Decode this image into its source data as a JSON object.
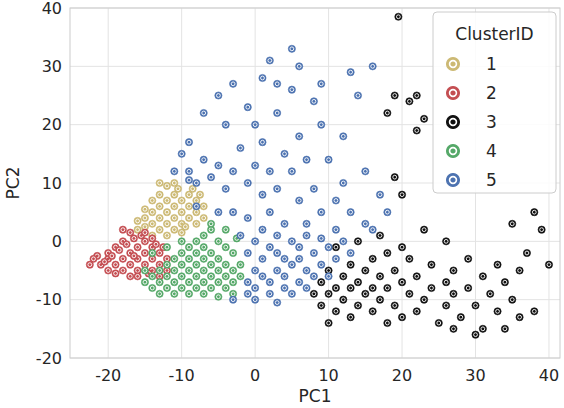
{
  "chart_data": {
    "type": "scatter",
    "x_label": "PC1",
    "y_label": "PC2",
    "xlim": [
      -25.2,
      41.5
    ],
    "ylim": [
      -20,
      40
    ],
    "xticks": [
      -20,
      -10,
      0,
      10,
      20,
      30,
      40
    ],
    "yticks": [
      -20,
      -10,
      0,
      10,
      20,
      30,
      40
    ],
    "grid": true,
    "legend": "upper right",
    "legend_title": "ClusterID",
    "marker": "circle",
    "series": [
      {
        "name": "1",
        "color": "#ccb974",
        "x": [
          -16,
          -15,
          -15,
          -14,
          -14,
          -13,
          -13,
          -13,
          -12,
          -12,
          -12,
          -11,
          -11,
          -11,
          -10,
          -10,
          -10,
          -9,
          -9,
          -9,
          -8,
          -8,
          -8,
          -7,
          -7,
          -14,
          -13,
          -12,
          -11,
          -10,
          -16,
          -14,
          -12,
          -11,
          -13,
          -9.5,
          -8.5,
          -7.5,
          -15,
          -10.5
        ],
        "values": [
          2,
          2.5,
          4,
          3,
          5,
          4,
          6,
          8,
          3,
          5,
          7,
          4,
          6,
          8,
          5,
          3,
          7,
          4,
          6,
          8,
          5,
          7,
          3,
          6,
          4,
          1,
          2,
          1,
          2,
          1.5,
          3.5,
          7,
          9.5,
          10,
          10,
          2.5,
          9,
          8,
          5.5,
          9
        ]
      },
      {
        "name": "2",
        "color": "#c44e52",
        "x": [
          -21,
          -20,
          -20,
          -19,
          -19,
          -18,
          -18,
          -18,
          -17,
          -17,
          -17,
          -16,
          -16,
          -16,
          -15,
          -15,
          -15,
          -14,
          -14,
          -14,
          -13,
          -13,
          -19.5,
          -18.5,
          -17.5,
          -16.5,
          -15.5,
          -20.5,
          -21.5,
          -22,
          -19,
          -16,
          -14.5,
          -13,
          -12,
          -12,
          -12.5,
          -17,
          -15,
          -18,
          -20,
          -22.5,
          -14,
          -13.5,
          -16.5
        ],
        "values": [
          -4,
          -3,
          -2,
          -4,
          -1,
          -3,
          -5,
          0,
          -2,
          -4,
          -6,
          -1,
          -3,
          -5,
          -2,
          -4,
          0,
          -1,
          -3,
          -5,
          -2,
          -4,
          -2.5,
          -1.5,
          -0.5,
          0.5,
          1,
          -3.5,
          -2.5,
          -3,
          -5.5,
          -6,
          -5.5,
          -6,
          -5,
          -3,
          -1,
          1.5,
          1.5,
          2,
          -5,
          -4,
          0.5,
          -0.5,
          -2.5
        ]
      },
      {
        "name": "3",
        "color": "#111111",
        "x": [
          8,
          9,
          9,
          10,
          10,
          11,
          11,
          12,
          12,
          13,
          13,
          13,
          14,
          14,
          15,
          15,
          16,
          16,
          16,
          17,
          17,
          18,
          18,
          18,
          19,
          19,
          20,
          20,
          21,
          21,
          22,
          22,
          23,
          24,
          24,
          25,
          26,
          26,
          27,
          27,
          28,
          29,
          29,
          30,
          31,
          31,
          32,
          33,
          33,
          34,
          35,
          36,
          37,
          38,
          39,
          36,
          30,
          27,
          11,
          14,
          17,
          20,
          23,
          26,
          19.5,
          18,
          19,
          21,
          22,
          19,
          20,
          22,
          23,
          35,
          40,
          38,
          34,
          10
        ],
        "values": [
          -9,
          -7,
          -11,
          -5,
          -9,
          -8,
          -12,
          -6,
          -10,
          -4,
          -8,
          -13,
          -7,
          -11,
          -5,
          -9,
          -3,
          -8,
          -12,
          -6,
          -10,
          -2,
          -8,
          -14,
          -5,
          -11,
          -7,
          -13,
          -3,
          -9,
          -6,
          -12,
          -10,
          -4,
          -8,
          -14,
          -7,
          -11,
          -5,
          -9,
          -13,
          -8,
          -3,
          -11,
          -6,
          -15,
          -9,
          -12,
          -4,
          -7,
          -10,
          -13,
          -2,
          5,
          2,
          -5,
          -16,
          -15,
          -1,
          0,
          1,
          -1,
          2,
          0,
          38.5,
          22,
          25,
          24,
          25,
          11,
          8,
          19,
          21,
          3,
          -4,
          -12,
          -15,
          -14
        ]
      },
      {
        "name": "4",
        "color": "#55a868",
        "x": [
          -15,
          -15,
          -14,
          -14,
          -13,
          -13,
          -13,
          -12,
          -12,
          -12,
          -11,
          -11,
          -11,
          -11,
          -10,
          -10,
          -10,
          -10,
          -9,
          -9,
          -9,
          -9,
          -9,
          -8,
          -8,
          -8,
          -8,
          -8,
          -7,
          -7,
          -7,
          -7,
          -7,
          -7,
          -6,
          -6,
          -6,
          -6,
          -6,
          -5,
          -5,
          -5,
          -5,
          -4,
          -4,
          -4,
          -4,
          -3,
          -3,
          -3,
          -2,
          -2,
          -6,
          -4,
          -12,
          -10,
          -14,
          -2.5,
          -3,
          -5
        ],
        "values": [
          -7,
          -5,
          -8,
          -6,
          -7,
          -9,
          -5,
          -8,
          -6,
          -4,
          -9,
          -7,
          -5,
          -3,
          -8,
          -6,
          -4,
          -2,
          -9,
          -7,
          -5,
          -3,
          -1,
          -8,
          -6,
          -4,
          -2,
          0,
          -9,
          -7,
          -5,
          -3,
          -1,
          1,
          -8,
          -6,
          -4,
          -2,
          2,
          -7,
          -5,
          -3,
          0,
          -8,
          -6,
          -4,
          -1,
          -7,
          -5,
          -2,
          -6,
          -4,
          3,
          2,
          -1,
          0,
          -2,
          0.5,
          -9,
          -9.5
        ]
      },
      {
        "name": "5",
        "color": "#4c72b0",
        "x": [
          -1,
          0,
          0,
          1,
          1,
          2,
          2,
          3,
          3,
          4,
          4,
          5,
          5,
          6,
          6,
          7,
          7,
          8,
          8,
          9,
          -1,
          -2,
          0,
          1,
          2,
          3,
          4,
          5,
          6,
          7,
          -1,
          10,
          10,
          11,
          12,
          13,
          9,
          -3,
          0,
          3,
          -11,
          -9,
          -8,
          -10,
          -7,
          -6,
          -5,
          -4,
          -3,
          -2,
          -1,
          0,
          0,
          1,
          1,
          2,
          2,
          3,
          3,
          4,
          4,
          5,
          5,
          6,
          6,
          7,
          7,
          8,
          9,
          9,
          10,
          11,
          12,
          12,
          13,
          14,
          15,
          16,
          17,
          -4,
          -5,
          -7,
          -3,
          2,
          5,
          6,
          9,
          13,
          8,
          -8,
          -5,
          -3,
          -1,
          11,
          15,
          -9,
          -9,
          16,
          18,
          3,
          -1,
          1
        ],
        "values": [
          -7,
          -5,
          -8,
          -6,
          -3,
          -7,
          -9,
          -5,
          -2,
          -8,
          -6,
          -4,
          -9,
          -7,
          -3,
          -5,
          -8,
          -2,
          -6,
          -4,
          -2,
          1,
          0,
          2,
          -1,
          1,
          -3,
          0,
          -1,
          1,
          -9,
          -1,
          -6,
          -3,
          0,
          -2,
          0.5,
          -10,
          -10,
          -10.5,
          12,
          12,
          10,
          15,
          14,
          11,
          13,
          9,
          12,
          16,
          10,
          13,
          20,
          17,
          8,
          12,
          5,
          22,
          9,
          15,
          3,
          12,
          26,
          7,
          18,
          14,
          3,
          9,
          20,
          5,
          14,
          7,
          18,
          10,
          5,
          25,
          12,
          30,
          8,
          20,
          25,
          22,
          27,
          31,
          33,
          30,
          27,
          29,
          24,
          6,
          5,
          5,
          4,
          2,
          3,
          10.5,
          17,
          2,
          5,
          27,
          23,
          28
        ]
      }
    ]
  }
}
